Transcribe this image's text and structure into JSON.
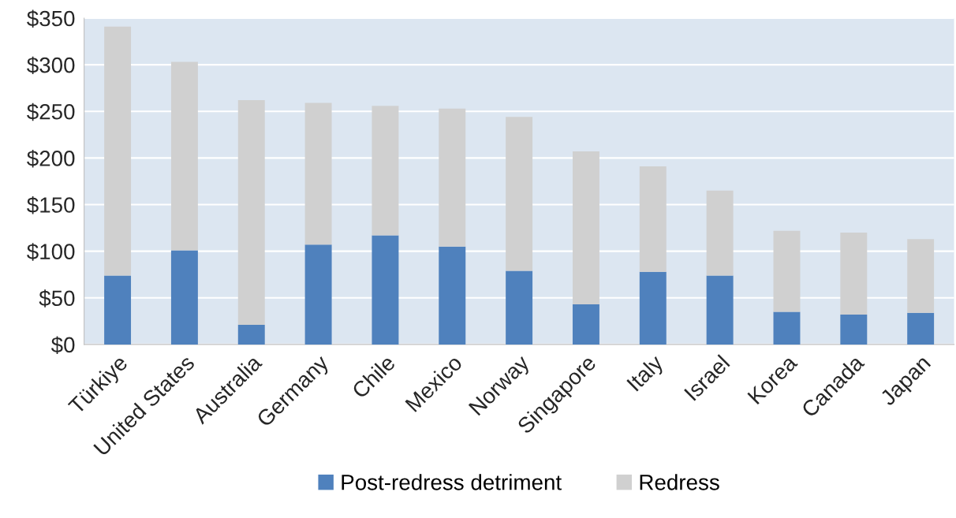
{
  "chart_data": {
    "type": "bar",
    "stacked": true,
    "categories": [
      "Türkiye",
      "United States",
      "Australia",
      "Germany",
      "Chile",
      "Mexico",
      "Norway",
      "Singapore",
      "Italy",
      "Israel",
      "Korea",
      "Canada",
      "Japan"
    ],
    "series": [
      {
        "name": "Post-redress detriment",
        "color": "#4f81bd",
        "values": [
          74,
          101,
          21,
          107,
          117,
          105,
          79,
          43,
          78,
          74,
          35,
          32,
          34
        ]
      },
      {
        "name": "Redress",
        "color": "#d0d0d0",
        "values": [
          267,
          202,
          241,
          152,
          139,
          148,
          165,
          164,
          113,
          91,
          87,
          88,
          79
        ]
      }
    ],
    "ylim": [
      0,
      350
    ],
    "yticks": [
      {
        "value": 0,
        "label": "$0"
      },
      {
        "value": 50,
        "label": "$50"
      },
      {
        "value": 100,
        "label": "$100"
      },
      {
        "value": 150,
        "label": "$150"
      },
      {
        "value": 200,
        "label": "$200"
      },
      {
        "value": 250,
        "label": "$250"
      },
      {
        "value": 300,
        "label": "$300"
      },
      {
        "value": 350,
        "label": "$350"
      }
    ],
    "grid": "y",
    "legend": "bottom"
  }
}
